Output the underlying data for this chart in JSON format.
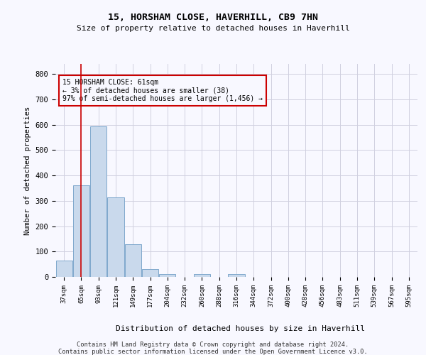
{
  "title1": "15, HORSHAM CLOSE, HAVERHILL, CB9 7HN",
  "title2": "Size of property relative to detached houses in Haverhill",
  "xlabel": "Distribution of detached houses by size in Haverhill",
  "ylabel": "Number of detached properties",
  "bin_labels": [
    "37sqm",
    "65sqm",
    "93sqm",
    "121sqm",
    "149sqm",
    "177sqm",
    "204sqm",
    "232sqm",
    "260sqm",
    "288sqm",
    "316sqm",
    "344sqm",
    "372sqm",
    "400sqm",
    "428sqm",
    "456sqm",
    "483sqm",
    "511sqm",
    "539sqm",
    "567sqm",
    "595sqm"
  ],
  "bar_values": [
    65,
    360,
    595,
    315,
    130,
    30,
    10,
    0,
    10,
    0,
    10,
    0,
    0,
    0,
    0,
    0,
    0,
    0,
    0,
    0,
    0
  ],
  "bar_color": "#c9d9ec",
  "bar_edge_color": "#7ea8cc",
  "property_line_x": 1.0,
  "property_line_color": "#cc0000",
  "ylim": [
    0,
    840
  ],
  "yticks": [
    0,
    100,
    200,
    300,
    400,
    500,
    600,
    700,
    800
  ],
  "annotation_text": "15 HORSHAM CLOSE: 61sqm\n← 3% of detached houses are smaller (38)\n97% of semi-detached houses are larger (1,456) →",
  "annotation_box_color": "#cc0000",
  "footer1": "Contains HM Land Registry data © Crown copyright and database right 2024.",
  "footer2": "Contains public sector information licensed under the Open Government Licence v3.0.",
  "bg_color": "#f8f8ff",
  "grid_color": "#d0d0e0"
}
